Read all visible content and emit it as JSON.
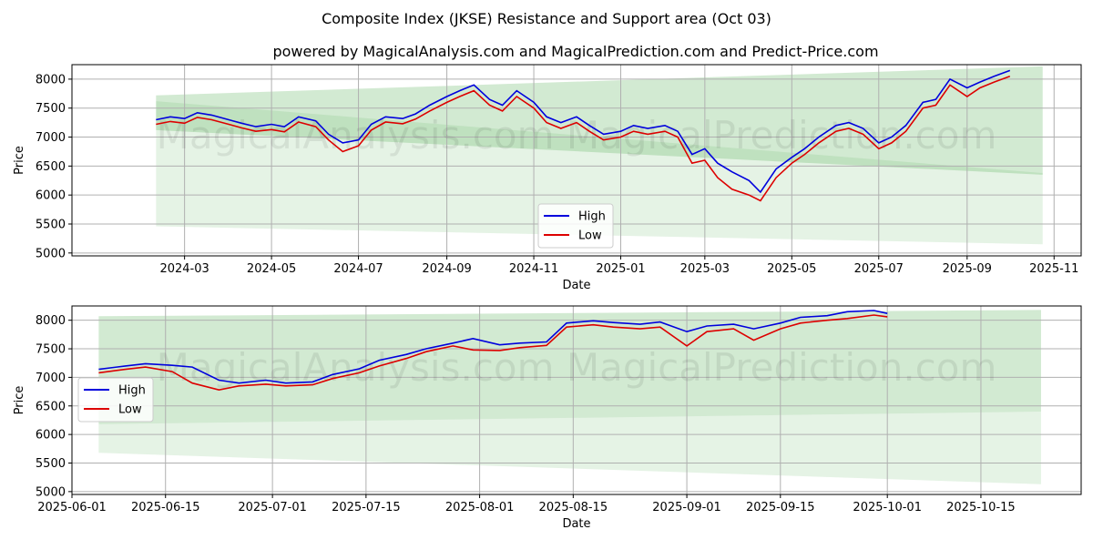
{
  "title": "Composite Index (JKSE) Resistance and Support area (Oct 03)",
  "subtitle": "powered by MagicalAnalysis.com and MagicalPrediction.com and Predict-Price.com",
  "watermark": "MagicalAnalysis.com     MagicalPrediction.com",
  "colors": {
    "high": "#0000dd",
    "low": "#dd0000",
    "band": "#5fb35f"
  },
  "chart_data": [
    {
      "type": "line",
      "xlabel": "Date",
      "ylabel": "Price",
      "ylim": [
        4950,
        8250
      ],
      "xlim": [
        "2023-12-13",
        "2025-11-20"
      ],
      "grid": true,
      "legend": "lower-center",
      "xticks": [
        "2024-03-01",
        "2024-05-01",
        "2024-07-01",
        "2024-09-01",
        "2024-11-01",
        "2025-01-01",
        "2025-03-01",
        "2025-05-01",
        "2025-07-01",
        "2025-09-01",
        "2025-11-01"
      ],
      "xtick_labels": [
        "2024-03",
        "2024-05",
        "2024-07",
        "2024-09",
        "2024-11",
        "2025-01",
        "2025-03",
        "2025-05",
        "2025-07",
        "2025-09",
        "2025-11"
      ],
      "yticks": [
        5000,
        5500,
        6000,
        6500,
        7000,
        7500,
        8000
      ],
      "bands": [
        {
          "name": "",
          "x": [
            "2024-02-10",
            "2025-10-24"
          ],
          "upper": [
            7720,
            8220
          ],
          "lower": [
            7120,
            6350
          ]
        },
        {
          "name": "",
          "x": [
            "2024-02-10",
            "2025-10-24"
          ],
          "upper": [
            7620,
            6380
          ],
          "lower": [
            5460,
            5150
          ]
        }
      ],
      "series": [
        {
          "name": "High",
          "x": [
            "2024-02-10",
            "2024-02-20",
            "2024-03-01",
            "2024-03-10",
            "2024-03-20",
            "2024-04-01",
            "2024-04-10",
            "2024-04-20",
            "2024-05-01",
            "2024-05-10",
            "2024-05-20",
            "2024-06-01",
            "2024-06-10",
            "2024-06-20",
            "2024-07-01",
            "2024-07-10",
            "2024-07-20",
            "2024-08-01",
            "2024-08-10",
            "2024-08-20",
            "2024-09-01",
            "2024-09-10",
            "2024-09-20",
            "2024-10-01",
            "2024-10-10",
            "2024-10-20",
            "2024-11-01",
            "2024-11-10",
            "2024-11-20",
            "2024-12-01",
            "2024-12-10",
            "2024-12-20",
            "2025-01-01",
            "2025-01-10",
            "2025-01-20",
            "2025-02-01",
            "2025-02-10",
            "2025-02-20",
            "2025-03-01",
            "2025-03-10",
            "2025-03-20",
            "2025-04-01",
            "2025-04-09",
            "2025-04-20",
            "2025-05-01",
            "2025-05-10",
            "2025-05-20",
            "2025-06-01",
            "2025-06-10",
            "2025-06-20",
            "2025-07-01",
            "2025-07-10",
            "2025-07-20",
            "2025-08-01",
            "2025-08-10",
            "2025-08-20",
            "2025-09-01",
            "2025-09-10",
            "2025-09-20",
            "2025-10-01"
          ],
          "values": [
            7300,
            7350,
            7320,
            7420,
            7380,
            7300,
            7240,
            7180,
            7220,
            7180,
            7350,
            7280,
            7050,
            6900,
            6950,
            7220,
            7350,
            7320,
            7400,
            7550,
            7700,
            7800,
            7900,
            7650,
            7550,
            7800,
            7600,
            7350,
            7250,
            7350,
            7200,
            7050,
            7100,
            7200,
            7150,
            7200,
            7100,
            6700,
            6800,
            6550,
            6400,
            6250,
            6050,
            6450,
            6650,
            6800,
            7000,
            7200,
            7250,
            7150,
            6900,
            7000,
            7200,
            7600,
            7650,
            8000,
            7850,
            7950,
            8050,
            8150
          ]
        },
        {
          "name": "Low",
          "x": [
            "2024-02-10",
            "2024-02-20",
            "2024-03-01",
            "2024-03-10",
            "2024-03-20",
            "2024-04-01",
            "2024-04-10",
            "2024-04-20",
            "2024-05-01",
            "2024-05-10",
            "2024-05-20",
            "2024-06-01",
            "2024-06-10",
            "2024-06-20",
            "2024-07-01",
            "2024-07-10",
            "2024-07-20",
            "2024-08-01",
            "2024-08-10",
            "2024-08-20",
            "2024-09-01",
            "2024-09-10",
            "2024-09-20",
            "2024-10-01",
            "2024-10-10",
            "2024-10-20",
            "2024-11-01",
            "2024-11-10",
            "2024-11-20",
            "2024-12-01",
            "2024-12-10",
            "2024-12-20",
            "2025-01-01",
            "2025-01-10",
            "2025-01-20",
            "2025-02-01",
            "2025-02-10",
            "2025-02-20",
            "2025-03-01",
            "2025-03-10",
            "2025-03-20",
            "2025-04-01",
            "2025-04-09",
            "2025-04-20",
            "2025-05-01",
            "2025-05-10",
            "2025-05-20",
            "2025-06-01",
            "2025-06-10",
            "2025-06-20",
            "2025-07-01",
            "2025-07-10",
            "2025-07-20",
            "2025-08-01",
            "2025-08-10",
            "2025-08-20",
            "2025-09-01",
            "2025-09-10",
            "2025-09-20",
            "2025-10-01"
          ],
          "values": [
            7220,
            7270,
            7240,
            7340,
            7300,
            7220,
            7160,
            7100,
            7130,
            7090,
            7260,
            7180,
            6950,
            6750,
            6850,
            7120,
            7260,
            7230,
            7310,
            7450,
            7600,
            7700,
            7800,
            7550,
            7450,
            7700,
            7500,
            7250,
            7150,
            7250,
            7100,
            6950,
            7000,
            7100,
            7050,
            7100,
            7000,
            6550,
            6600,
            6300,
            6100,
            6000,
            5900,
            6300,
            6550,
            6700,
            6900,
            7100,
            7150,
            7050,
            6800,
            6900,
            7100,
            7500,
            7550,
            7900,
            7700,
            7850,
            7950,
            8050
          ]
        }
      ]
    },
    {
      "type": "line",
      "xlabel": "Date",
      "ylabel": "Price",
      "ylim": [
        4950,
        8250
      ],
      "xlim": [
        "2025-06-01",
        "2025-10-30"
      ],
      "grid": true,
      "legend": "center-left",
      "xticks": [
        "2025-06-01",
        "2025-06-15",
        "2025-07-01",
        "2025-07-15",
        "2025-08-01",
        "2025-08-15",
        "2025-09-01",
        "2025-09-15",
        "2025-10-01",
        "2025-10-15"
      ],
      "xtick_labels": [
        "2025-06-01",
        "2025-06-15",
        "2025-07-01",
        "2025-07-15",
        "2025-08-01",
        "2025-08-15",
        "2025-09-01",
        "2025-09-15",
        "2025-10-01",
        "2025-10-15"
      ],
      "yticks": [
        5000,
        5500,
        6000,
        6500,
        7000,
        7500,
        8000
      ],
      "bands": [
        {
          "name": "",
          "x": [
            "2025-06-05",
            "2025-10-24"
          ],
          "upper": [
            8070,
            8180
          ],
          "lower": [
            6180,
            6400
          ]
        },
        {
          "name": "",
          "x": [
            "2025-06-05",
            "2025-10-24"
          ],
          "upper": [
            6180,
            6400
          ],
          "lower": [
            5680,
            5130
          ]
        }
      ],
      "series": [
        {
          "name": "High",
          "x": [
            "2025-06-05",
            "2025-06-09",
            "2025-06-12",
            "2025-06-16",
            "2025-06-19",
            "2025-06-23",
            "2025-06-26",
            "2025-06-30",
            "2025-07-03",
            "2025-07-07",
            "2025-07-10",
            "2025-07-14",
            "2025-07-17",
            "2025-07-21",
            "2025-07-24",
            "2025-07-28",
            "2025-07-31",
            "2025-08-04",
            "2025-08-07",
            "2025-08-11",
            "2025-08-14",
            "2025-08-18",
            "2025-08-21",
            "2025-08-25",
            "2025-08-28",
            "2025-09-01",
            "2025-09-04",
            "2025-09-08",
            "2025-09-11",
            "2025-09-15",
            "2025-09-18",
            "2025-09-22",
            "2025-09-25",
            "2025-09-29",
            "2025-10-01"
          ],
          "values": [
            7140,
            7200,
            7240,
            7210,
            7180,
            6950,
            6900,
            6950,
            6900,
            6920,
            7050,
            7150,
            7300,
            7400,
            7500,
            7600,
            7680,
            7570,
            7600,
            7620,
            7950,
            7990,
            7960,
            7930,
            7970,
            7800,
            7900,
            7930,
            7850,
            7950,
            8050,
            8080,
            8150,
            8170,
            8120
          ]
        },
        {
          "name": "Low",
          "x": [
            "2025-06-05",
            "2025-06-09",
            "2025-06-12",
            "2025-06-16",
            "2025-06-19",
            "2025-06-23",
            "2025-06-26",
            "2025-06-30",
            "2025-07-03",
            "2025-07-07",
            "2025-07-10",
            "2025-07-14",
            "2025-07-17",
            "2025-07-21",
            "2025-07-24",
            "2025-07-28",
            "2025-07-31",
            "2025-08-04",
            "2025-08-07",
            "2025-08-11",
            "2025-08-14",
            "2025-08-18",
            "2025-08-21",
            "2025-08-25",
            "2025-08-28",
            "2025-09-01",
            "2025-09-04",
            "2025-09-08",
            "2025-09-11",
            "2025-09-15",
            "2025-09-18",
            "2025-09-22",
            "2025-09-25",
            "2025-09-29",
            "2025-10-01"
          ],
          "values": [
            7080,
            7140,
            7180,
            7100,
            6900,
            6780,
            6850,
            6880,
            6850,
            6870,
            6980,
            7080,
            7200,
            7330,
            7450,
            7550,
            7480,
            7470,
            7520,
            7560,
            7880,
            7920,
            7880,
            7850,
            7880,
            7550,
            7800,
            7850,
            7650,
            7850,
            7950,
            8000,
            8030,
            8090,
            8060
          ]
        }
      ]
    }
  ]
}
